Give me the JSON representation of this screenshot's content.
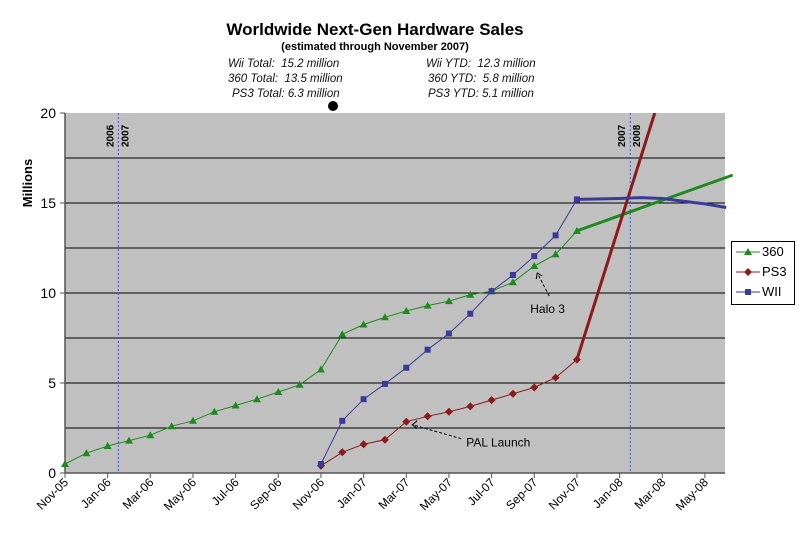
{
  "chart_data": {
    "type": "line",
    "title": "Worldwide Next-Gen Hardware Sales",
    "subtitle": "(estimated through November 2007)",
    "stats": [
      {
        "left": "Wii Total:  15.2 million",
        "right": "Wii YTD:  12.3 million"
      },
      {
        "left": "360 Total:  13.5 million",
        "right": "360 YTD:  5.8 million"
      },
      {
        "left": "PS3 Total: 6.3 million",
        "right": "PS3 YTD: 5.1 million"
      }
    ],
    "ylabel": "Millions",
    "ylim": [
      0,
      20
    ],
    "yticks": [
      "0",
      "5",
      "10",
      "15",
      "20"
    ],
    "gridlines_every": 2.5,
    "x_months": [
      "Nov-05",
      "Dec-05",
      "Jan-06",
      "Feb-06",
      "Mar-06",
      "Apr-06",
      "May-06",
      "Jun-06",
      "Jul-06",
      "Aug-06",
      "Sep-06",
      "Oct-06",
      "Nov-06",
      "Dec-06",
      "Jan-07",
      "Feb-07",
      "Mar-07",
      "Apr-07",
      "May-07",
      "Jun-07",
      "Jul-07",
      "Aug-07",
      "Sep-07",
      "Oct-07",
      "Nov-07",
      "Dec-07",
      "Jan-08",
      "Feb-08",
      "Mar-08",
      "Apr-08",
      "May-08",
      "Jun-08"
    ],
    "xtick_labels": [
      "Nov-05",
      "Jan-06",
      "Mar-06",
      "May-06",
      "Jul-06",
      "Sep-06",
      "Nov-06",
      "Jan-07",
      "Mar-07",
      "May-07",
      "Jul-07",
      "Sep-07",
      "Nov-07",
      "Jan-08",
      "Mar-08",
      "May-08"
    ],
    "year_markers": [
      {
        "after_month": "Dec-05",
        "before": "2006",
        "after": "2007"
      },
      {
        "after_month": "Dec-07",
        "before": "2007",
        "after": "2008"
      }
    ],
    "series": [
      {
        "name": "360",
        "color": "#1e8a1e",
        "marker": "triangle",
        "start": "Nov-05",
        "values": [
          0.5,
          1.1,
          1.5,
          1.8,
          2.1,
          2.6,
          2.9,
          3.4,
          3.75,
          4.1,
          4.5,
          4.9,
          5.75,
          7.7,
          8.25,
          8.65,
          9.0,
          9.3,
          9.55,
          9.9,
          10.1,
          10.6,
          11.5,
          12.15,
          13.45
        ],
        "projection": [
          [
            24,
            13.45
          ],
          [
            31.3,
            16.55
          ]
        ]
      },
      {
        "name": "PS3",
        "color": "#8b1a1a",
        "marker": "diamond",
        "start": "Nov-06",
        "values": [
          0.4,
          1.15,
          1.6,
          1.85,
          2.85,
          3.15,
          3.4,
          3.7,
          4.05,
          4.4,
          4.75,
          5.3,
          6.3
        ],
        "projection": [
          [
            24,
            6.3
          ],
          [
            27.65,
            20
          ]
        ]
      },
      {
        "name": "WII",
        "color": "#3a3a9a",
        "marker": "square",
        "start": "Nov-06",
        "values": [
          0.5,
          2.9,
          4.1,
          4.95,
          5.85,
          6.85,
          7.75,
          8.85,
          10.1,
          11.0,
          12.05,
          13.2,
          15.2
        ],
        "projection": [
          [
            24,
            15.2
          ],
          [
            26,
            15.25
          ],
          [
            27,
            15.3
          ],
          [
            28,
            15.25
          ],
          [
            29,
            15.1
          ],
          [
            30,
            14.95
          ],
          [
            31,
            14.75
          ]
        ]
      }
    ],
    "annotations": [
      {
        "text": "Halo 3",
        "series": "360",
        "month": "Sep-07"
      },
      {
        "text": "PAL Launch",
        "series": "PS3",
        "month": "Mar-07"
      }
    ],
    "legend": "right"
  }
}
